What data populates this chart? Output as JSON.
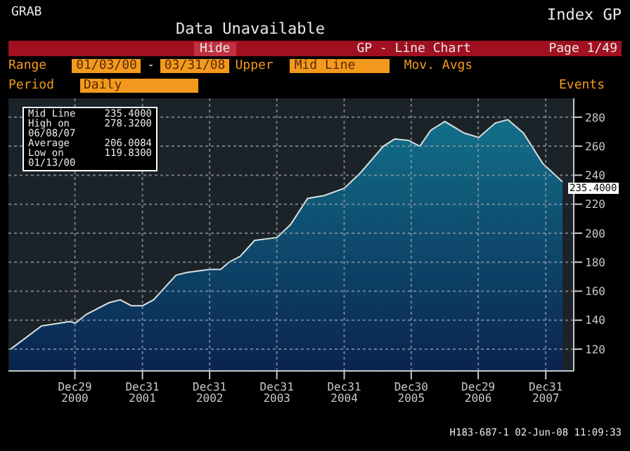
{
  "chart_data": {
    "type": "area",
    "title": "Data Unavailable",
    "subtitle": "GP - Line Chart",
    "x": [
      "2000-01-13",
      "2000-07-01",
      "2000-12-01",
      "2001-01-01",
      "2001-03-01",
      "2001-07-01",
      "2001-09-01",
      "2001-11-01",
      "2002-01-01",
      "2002-03-01",
      "2002-07-01",
      "2002-09-01",
      "2003-01-01",
      "2003-03-01",
      "2003-04-15",
      "2003-06-15",
      "2003-09-01",
      "2004-01-01",
      "2004-03-15",
      "2004-06-15",
      "2004-09-15",
      "2005-01-01",
      "2005-04-01",
      "2005-08-01",
      "2005-10-01",
      "2005-12-15",
      "2006-02-15",
      "2006-04-15",
      "2006-07-01",
      "2006-10-15",
      "2007-01-01",
      "2007-04-01",
      "2007-06-08",
      "2007-09-01",
      "2007-12-15",
      "2008-03-31"
    ],
    "series": [
      {
        "color": "#12708a",
        "values": [
          119.83,
          136,
          139,
          138,
          144,
          152,
          154,
          150,
          150,
          154,
          171,
          173,
          175,
          175,
          180,
          184,
          195,
          197,
          206,
          224,
          226,
          231,
          242,
          260,
          265,
          264,
          260,
          271,
          277,
          269,
          266,
          276,
          278.32,
          269,
          248,
          235.4
        ]
      }
    ],
    "xlim": [
      "2000-01-03",
      "2008-05-31"
    ],
    "xticks": [
      {
        "value": "2000-12-29",
        "label": "Dec29 2000"
      },
      {
        "value": "2001-12-31",
        "label": "Dec31 2001"
      },
      {
        "value": "2002-12-31",
        "label": "Dec31 2002"
      },
      {
        "value": "2003-12-31",
        "label": "Dec31 2003"
      },
      {
        "value": "2004-12-31",
        "label": "Dec31 2004"
      },
      {
        "value": "2005-12-30",
        "label": "Dec30 2005"
      },
      {
        "value": "2006-12-29",
        "label": "Dec29 2006"
      },
      {
        "value": "2007-12-31",
        "label": "Dec31 2007"
      }
    ],
    "ylim": [
      105,
      293
    ],
    "yticks": [
      120,
      140,
      160,
      180,
      200,
      220,
      240,
      260,
      280
    ],
    "grid": true,
    "annotations": [
      "GRAB",
      "Index GP",
      "Hide",
      "Page 1/49",
      "Range",
      "01/03/00",
      "-",
      "03/31/08",
      "Upper",
      "Mid Line",
      "Mov. Avgs",
      "Period",
      "Daily",
      "Events",
      "Mid Line 235.4000",
      "High on 06/08/07 278.3200",
      "Average 206.0084",
      "Low on 01/13/00 119.8300",
      {
        "text": "235.4000",
        "x": "2008-03-31",
        "y": 235.4
      },
      "H183-687-1 02-Jun-08 11:09:33"
    ]
  }
}
